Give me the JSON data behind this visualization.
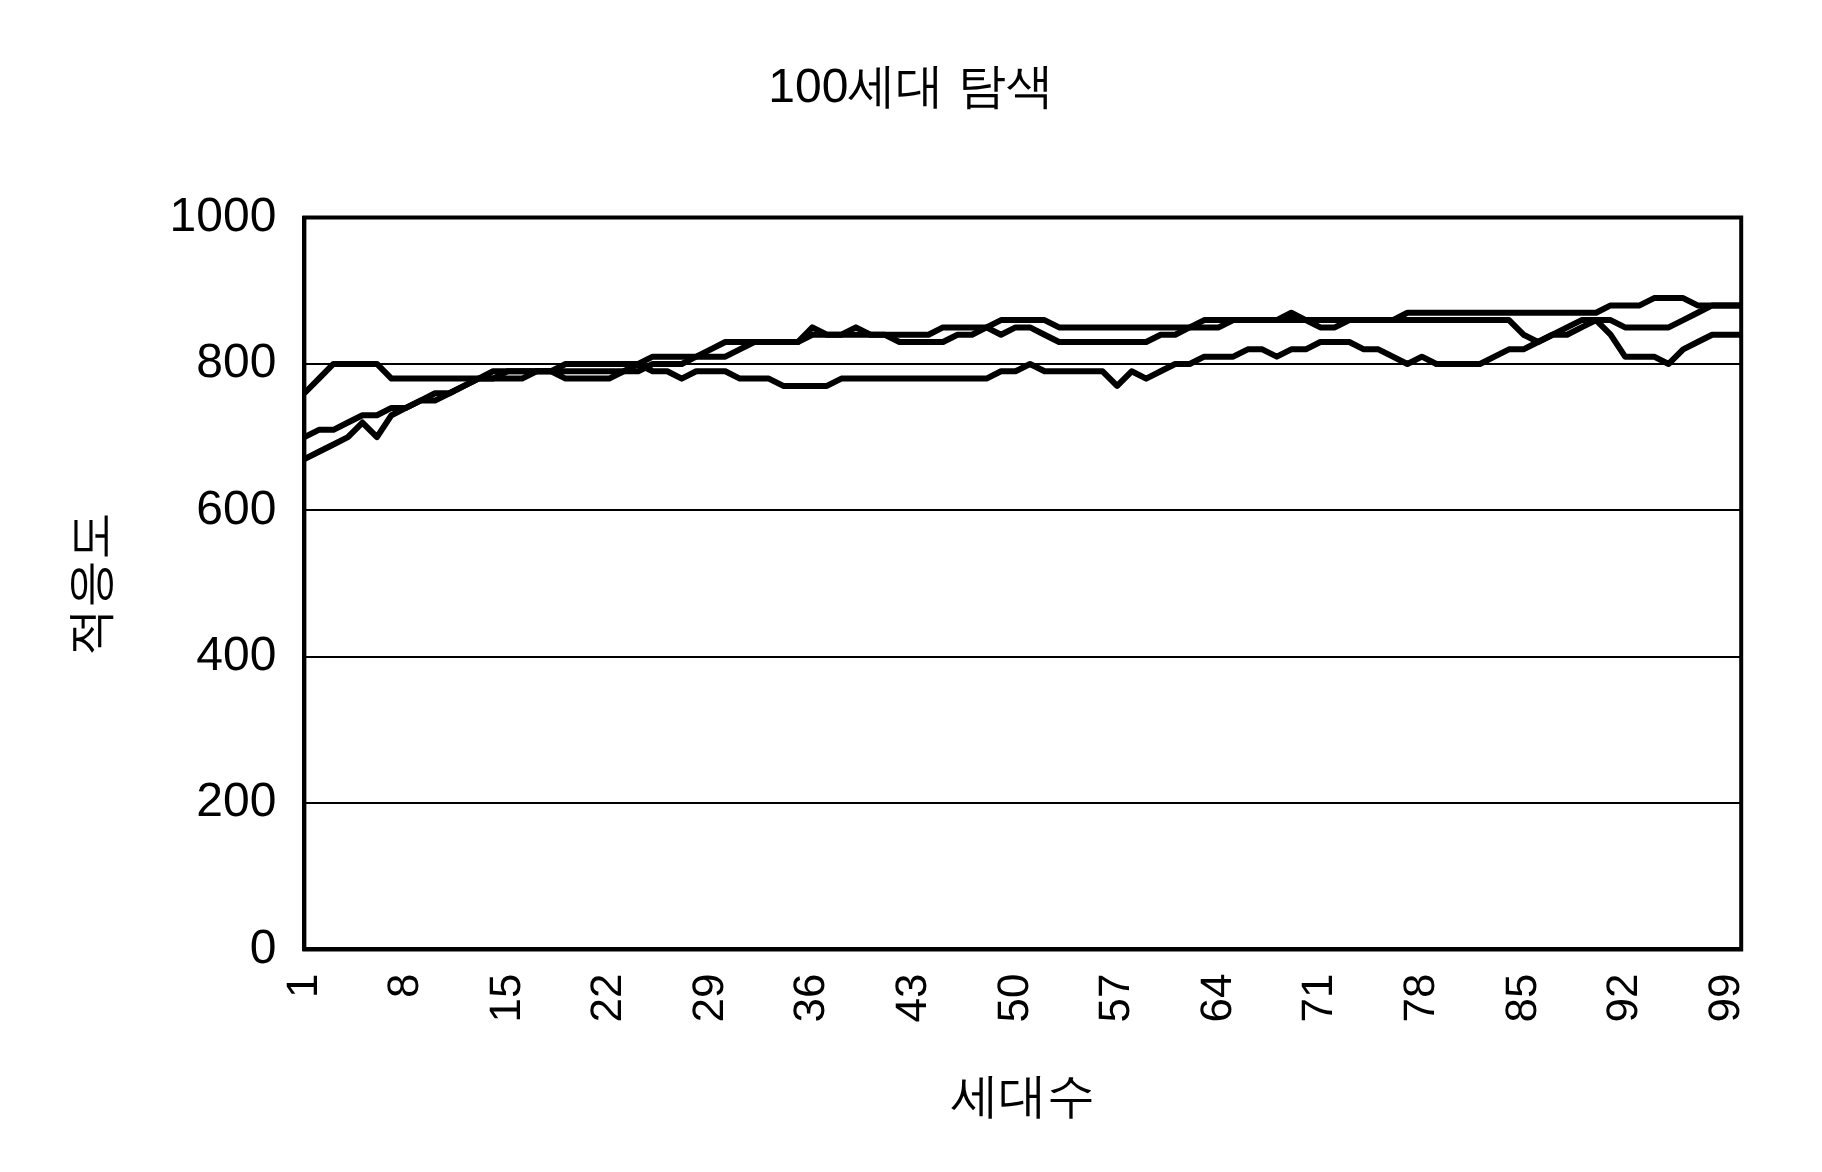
{
  "chart_data": {
    "type": "line",
    "title": "100세대 탐색",
    "xlabel": "세대수",
    "ylabel": "적응도",
    "categories": [
      "1",
      null,
      null,
      null,
      null,
      null,
      null,
      "8",
      null,
      null,
      null,
      null,
      null,
      null,
      "15",
      null,
      null,
      null,
      null,
      null,
      null,
      "22",
      null,
      null,
      null,
      null,
      null,
      null,
      "29",
      null,
      null,
      null,
      null,
      null,
      null,
      "36",
      null,
      null,
      null,
      null,
      null,
      null,
      "43",
      null,
      null,
      null,
      null,
      null,
      null,
      "50",
      null,
      null,
      null,
      null,
      null,
      null,
      "57",
      null,
      null,
      null,
      null,
      null,
      null,
      "64",
      null,
      null,
      null,
      null,
      null,
      null,
      "71",
      null,
      null,
      null,
      null,
      null,
      null,
      "78",
      null,
      null,
      null,
      null,
      null,
      null,
      "85",
      null,
      null,
      null,
      null,
      null,
      null,
      "92",
      null,
      null,
      null,
      null,
      null,
      null,
      "99",
      null
    ],
    "series": [
      {
        "color": "#000000",
        "values": [
          760,
          780,
          800,
          800,
          800,
          800,
          780,
          780,
          780,
          780,
          780,
          780,
          780,
          780,
          780,
          780,
          790,
          790,
          790,
          790,
          790,
          790,
          790,
          800,
          790,
          790,
          780,
          790,
          790,
          790,
          780,
          780,
          780,
          770,
          770,
          770,
          770,
          780,
          780,
          780,
          780,
          780,
          780,
          780,
          780,
          780,
          780,
          780,
          790,
          790,
          800,
          790,
          790,
          790,
          790,
          790,
          770,
          790,
          780,
          790,
          800,
          800,
          810,
          810,
          810,
          820,
          820,
          810,
          820,
          820,
          830,
          830,
          830,
          820,
          820,
          810,
          800,
          810,
          800,
          800,
          800,
          800,
          810,
          820,
          820,
          830,
          840,
          840,
          850,
          860,
          840,
          810,
          810,
          810,
          800,
          820,
          830,
          840,
          840,
          840
        ]
      },
      {
        "color": "#000000",
        "values": [
          700,
          710,
          710,
          720,
          730,
          730,
          740,
          740,
          750,
          760,
          760,
          770,
          780,
          790,
          790,
          790,
          790,
          790,
          800,
          800,
          800,
          800,
          800,
          800,
          810,
          810,
          810,
          810,
          820,
          830,
          830,
          830,
          830,
          830,
          830,
          850,
          840,
          840,
          840,
          840,
          840,
          840,
          840,
          840,
          850,
          850,
          850,
          850,
          860,
          860,
          860,
          860,
          850,
          850,
          850,
          850,
          850,
          850,
          850,
          850,
          850,
          850,
          860,
          860,
          860,
          860,
          860,
          860,
          870,
          860,
          860,
          860,
          860,
          860,
          860,
          860,
          870,
          870,
          870,
          870,
          870,
          870,
          870,
          870,
          870,
          870,
          870,
          870,
          870,
          870,
          880,
          880,
          880,
          890,
          890,
          890,
          880,
          880,
          880,
          880
        ]
      },
      {
        "color": "#000000",
        "values": [
          670,
          680,
          690,
          700,
          720,
          700,
          730,
          740,
          750,
          750,
          760,
          770,
          780,
          780,
          790,
          790,
          790,
          790,
          780,
          780,
          780,
          780,
          790,
          790,
          800,
          800,
          800,
          810,
          810,
          810,
          820,
          830,
          830,
          830,
          830,
          840,
          840,
          840,
          850,
          840,
          840,
          830,
          830,
          830,
          830,
          840,
          840,
          850,
          840,
          850,
          850,
          840,
          830,
          830,
          830,
          830,
          830,
          830,
          830,
          840,
          840,
          850,
          850,
          850,
          860,
          860,
          860,
          860,
          860,
          860,
          850,
          850,
          860,
          860,
          860,
          860,
          860,
          860,
          860,
          860,
          860,
          860,
          860,
          860,
          840,
          830,
          840,
          850,
          860,
          860,
          860,
          850,
          850,
          850,
          850,
          860,
          870,
          880,
          880,
          880
        ]
      }
    ],
    "ylim": [
      0,
      1000
    ],
    "yticks": [
      0,
      200,
      400,
      600,
      800,
      1000
    ],
    "grid": "y",
    "legend": false,
    "marker": "none",
    "line_style": "solid"
  }
}
